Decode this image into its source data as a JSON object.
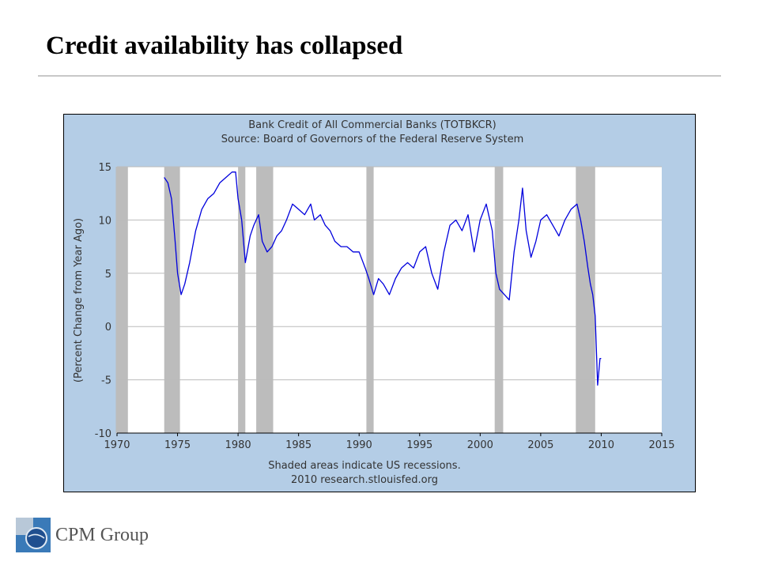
{
  "slide": {
    "title": "Credit availability has collapsed",
    "company": "CPM Group"
  },
  "colors": {
    "plot_background": "#ffffff",
    "frame_background": "#b4cde6",
    "recession_shading": "#bcbcbc",
    "series_line": "#0000dd"
  },
  "chart_data": {
    "type": "line",
    "title": "Bank Credit of All Commercial Banks (TOTBKCR)",
    "subtitle": "Source: Board of Governors of the Federal Reserve System",
    "ylabel": "(Percent Change from Year Ago)",
    "xlabel": "",
    "footnote": "Shaded areas indicate US recessions.",
    "credit": "2010 research.stlouisfed.org",
    "xlim": [
      1970,
      2015
    ],
    "ylim": [
      -10,
      15
    ],
    "xticks": [
      "1970",
      "1975",
      "1980",
      "1985",
      "1990",
      "1995",
      "2000",
      "2005",
      "2010",
      "2015"
    ],
    "yticks": [
      "15",
      "10",
      "5",
      "0",
      "-5",
      "-10"
    ],
    "grid": true,
    "recessions": [
      [
        1969.9,
        1970.9
      ],
      [
        1973.9,
        1975.2
      ],
      [
        1980.0,
        1980.6
      ],
      [
        1981.5,
        1982.9
      ],
      [
        1990.6,
        1991.2
      ],
      [
        2001.2,
        2001.9
      ],
      [
        2007.9,
        2009.5
      ]
    ],
    "series": [
      {
        "x": [
          1973.9,
          1974.2,
          1974.5,
          1974.8,
          1975.0,
          1975.3,
          1975.6,
          1976.0,
          1976.5,
          1977.0,
          1977.5,
          1978.0,
          1978.5,
          1979.0,
          1979.5,
          1979.8,
          1980.0,
          1980.3,
          1980.6,
          1981.0,
          1981.3,
          1981.7,
          1982.0,
          1982.4,
          1982.8,
          1983.2,
          1983.6,
          1984.0,
          1984.5,
          1985.0,
          1985.5,
          1986.0,
          1986.3,
          1986.8,
          1987.2,
          1987.6,
          1988.0,
          1988.5,
          1989.0,
          1989.5,
          1990.0,
          1990.5,
          1990.8,
          1991.2,
          1991.6,
          1992.0,
          1992.5,
          1993.0,
          1993.5,
          1994.0,
          1994.5,
          1995.0,
          1995.5,
          1996.0,
          1996.5,
          1997.0,
          1997.5,
          1998.0,
          1998.5,
          1999.0,
          1999.5,
          2000.0,
          2000.5,
          2001.0,
          2001.3,
          2001.6,
          2002.0,
          2002.4,
          2002.8,
          2003.2,
          2003.5,
          2003.8,
          2004.2,
          2004.6,
          2005.0,
          2005.5,
          2006.0,
          2006.5,
          2007.0,
          2007.5,
          2008.0,
          2008.3,
          2008.6,
          2008.9,
          2009.1,
          2009.3,
          2009.5,
          2009.7,
          2009.9,
          2010.0
        ],
        "y": [
          14.0,
          13.5,
          12.0,
          8.0,
          5.0,
          3.0,
          4.0,
          6.0,
          9.0,
          11.0,
          12.0,
          12.5,
          13.5,
          14.0,
          14.5,
          14.5,
          12.0,
          10.0,
          6.0,
          8.5,
          9.5,
          10.5,
          8.0,
          7.0,
          7.5,
          8.5,
          9.0,
          10.0,
          11.5,
          11.0,
          10.5,
          11.5,
          10.0,
          10.5,
          9.5,
          9.0,
          8.0,
          7.5,
          7.5,
          7.0,
          7.0,
          5.5,
          4.5,
          3.0,
          4.5,
          4.0,
          3.0,
          4.5,
          5.5,
          6.0,
          5.5,
          7.0,
          7.5,
          5.0,
          3.5,
          7.0,
          9.5,
          10.0,
          9.0,
          10.5,
          7.0,
          10.0,
          11.5,
          9.0,
          5.0,
          3.5,
          3.0,
          2.5,
          7.0,
          10.0,
          13.0,
          9.0,
          6.5,
          8.0,
          10.0,
          10.5,
          9.5,
          8.5,
          10.0,
          11.0,
          11.5,
          10.0,
          8.0,
          5.5,
          4.0,
          3.0,
          1.0,
          -5.5,
          -3.0,
          -3.0
        ]
      }
    ]
  }
}
